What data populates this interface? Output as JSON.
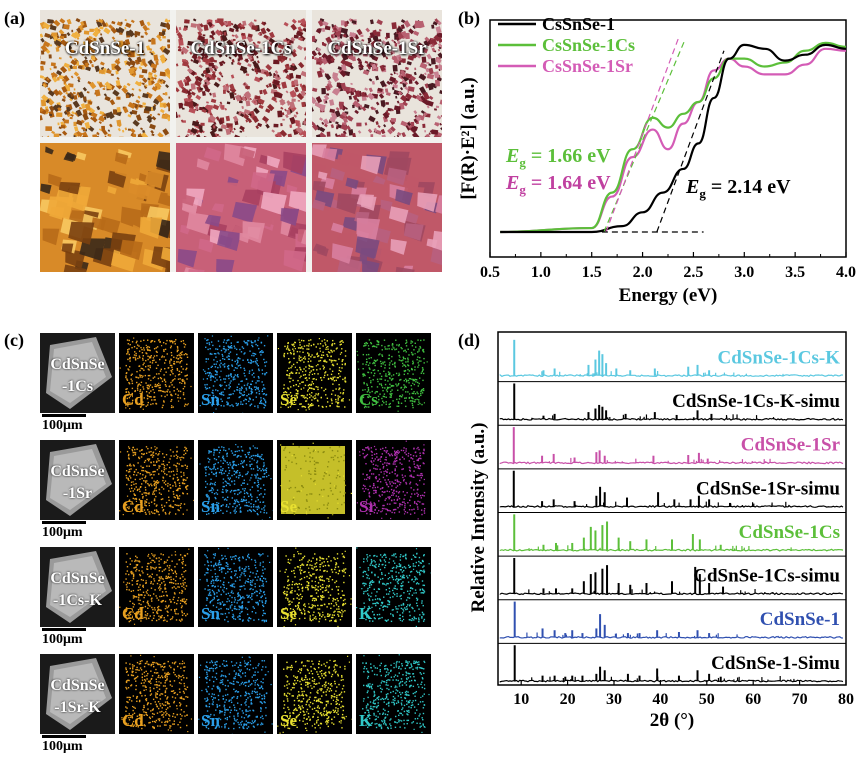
{
  "panel_a": {
    "letter": "(a)",
    "labels": [
      "CdSnSe-1",
      "CdSnSe-1Cs",
      "CdSnSe-1Sr"
    ]
  },
  "panel_b": {
    "letter": "(b)",
    "legend": [
      {
        "name": "CsSnSe-1",
        "color": "#000000"
      },
      {
        "name": "CsSnSe-1Cs",
        "color": "#5cbf3a"
      },
      {
        "name": "CsSnSe-1Sr",
        "color": "#d45cb6"
      }
    ],
    "eg_labels": [
      {
        "text_prefix": "E",
        "sub": "g",
        "value": " = 1.66 eV",
        "color": "#5cbf3a"
      },
      {
        "text_prefix": "E",
        "sub": "g",
        "value": " = 1.64 eV",
        "color": "#c040a0"
      },
      {
        "text_prefix": "E",
        "sub": "g",
        "value": " = 2.14 eV",
        "color": "#000000"
      }
    ],
    "ylabel": "[F(R)·E²] (a.u.)",
    "xlabel": "Energy (eV)",
    "xticks": [
      "0.5",
      "1.0",
      "1.5",
      "2.0",
      "2.5",
      "3.0",
      "3.5",
      "4.0"
    ]
  },
  "panel_c": {
    "letter": "(c)",
    "rows": [
      {
        "sem": [
          "CdSnSe",
          "-1Cs"
        ],
        "elements": [
          "Cd",
          "Sn",
          "Se",
          "Cs"
        ],
        "colors": [
          "#e8a020",
          "#2a9ee8",
          "#e8e030",
          "#40c040"
        ],
        "scale": "100μm"
      },
      {
        "sem": [
          "CdSnSe",
          "-1Sr"
        ],
        "elements": [
          "Cd",
          "Sn",
          "Se",
          "Sr"
        ],
        "colors": [
          "#e8a020",
          "#2a9ee8",
          "#e8e030",
          "#b030b0"
        ],
        "scale": "100μm"
      },
      {
        "sem": [
          "CdSnSe",
          "-1Cs-K"
        ],
        "elements": [
          "Cd",
          "Sn",
          "Se",
          "K"
        ],
        "colors": [
          "#e8a020",
          "#2a9ee8",
          "#e8e030",
          "#30c8c8"
        ],
        "scale": "100μm"
      },
      {
        "sem": [
          "CdSnSe",
          "-1Sr-K"
        ],
        "elements": [
          "Cd",
          "Sn",
          "Se",
          "K"
        ],
        "colors": [
          "#e8a020",
          "#2a9ee8",
          "#e8e030",
          "#30c8c8"
        ],
        "scale": "100μm"
      }
    ]
  },
  "panel_d": {
    "letter": "(d)",
    "ylabel": "Relative Intensity (a.u.)",
    "xlabel": "2θ (°)",
    "xticks": [
      "10",
      "20",
      "30",
      "40",
      "50",
      "60",
      "70",
      "80"
    ],
    "traces": [
      {
        "name": "CdSnSe-1Cs-K",
        "color": "#5bc8e0"
      },
      {
        "name": "CdSnSe-1Cs-K-simu",
        "color": "#000000"
      },
      {
        "name": "CdSnSe-1Sr",
        "color": "#c850a8"
      },
      {
        "name": "CdSnSe-1Sr-simu",
        "color": "#000000"
      },
      {
        "name": "CdSnSe-1Cs",
        "color": "#5cbf3a"
      },
      {
        "name": "CdSnSe-1Cs-simu",
        "color": "#000000"
      },
      {
        "name": "CdSnSe-1",
        "color": "#3050b0"
      },
      {
        "name": "CdSnSe-1-Simu",
        "color": "#000000"
      }
    ]
  },
  "chart_data": [
    {
      "type": "line",
      "panel": "b",
      "xlabel": "Energy (eV)",
      "ylabel": "[F(R)·E²] (a.u.)",
      "xlim": [
        0.5,
        4.0
      ],
      "series": [
        {
          "name": "CsSnSe-1",
          "x": [
            0.6,
            1.5,
            1.8,
            2.0,
            2.2,
            2.4,
            2.55,
            2.7,
            2.85,
            3.0,
            3.2,
            3.4,
            3.6,
            3.8,
            4.0
          ],
          "y": [
            0.0,
            0.0,
            0.03,
            0.1,
            0.2,
            0.32,
            0.45,
            0.68,
            0.88,
            0.95,
            0.93,
            0.87,
            0.9,
            0.95,
            0.93
          ]
        },
        {
          "name": "CsSnSe-1Cs",
          "x": [
            0.6,
            1.5,
            1.7,
            1.9,
            2.1,
            2.25,
            2.4,
            2.55,
            2.7,
            2.85,
            3.0,
            3.2,
            3.4,
            3.6,
            3.8,
            4.0
          ],
          "y": [
            0.0,
            0.02,
            0.2,
            0.42,
            0.58,
            0.53,
            0.6,
            0.66,
            0.78,
            0.88,
            0.88,
            0.84,
            0.86,
            0.92,
            0.96,
            0.94
          ]
        },
        {
          "name": "CsSnSe-1Sr",
          "x": [
            0.6,
            1.5,
            1.7,
            1.9,
            2.1,
            2.25,
            2.4,
            2.55,
            2.7,
            2.85,
            3.0,
            3.2,
            3.4,
            3.6,
            3.8,
            4.0
          ],
          "y": [
            0.0,
            0.02,
            0.18,
            0.38,
            0.52,
            0.42,
            0.55,
            0.66,
            0.82,
            0.88,
            0.84,
            0.8,
            0.8,
            0.85,
            0.93,
            0.92
          ]
        }
      ],
      "annotations": [
        "Eg = 1.66 eV",
        "Eg = 1.64 eV",
        "Eg = 2.14 eV"
      ]
    },
    {
      "type": "line",
      "panel": "d",
      "xlabel": "2θ (°)",
      "ylabel": "Relative Intensity (a.u.)",
      "xlim": [
        5,
        80
      ],
      "peaks": {
        "CdSnSe-1Cs-K": [
          [
            8.5,
            1.0
          ],
          [
            14.8,
            0.15
          ],
          [
            17.2,
            0.2
          ],
          [
            24.5,
            0.3
          ],
          [
            26.0,
            0.45
          ],
          [
            26.8,
            0.7
          ],
          [
            27.5,
            0.6
          ],
          [
            28.3,
            0.35
          ],
          [
            30.5,
            0.2
          ],
          [
            33.5,
            0.15
          ],
          [
            38.8,
            0.2
          ],
          [
            46.0,
            0.25
          ],
          [
            48.0,
            0.3
          ],
          [
            50.5,
            0.15
          ]
        ],
        "CdSnSe-1Cs-K-simu": [
          [
            8.5,
            1.0
          ],
          [
            14.8,
            0.1
          ],
          [
            17.2,
            0.15
          ],
          [
            24.5,
            0.2
          ],
          [
            26.0,
            0.3
          ],
          [
            26.8,
            0.4
          ],
          [
            27.5,
            0.35
          ],
          [
            28.3,
            0.25
          ],
          [
            32.5,
            0.15
          ],
          [
            38.8,
            0.2
          ],
          [
            43.5,
            0.12
          ],
          [
            48.0,
            0.25
          ],
          [
            51.0,
            0.15
          ]
        ],
        "CdSnSe-1Sr": [
          [
            8.4,
            1.0
          ],
          [
            14.5,
            0.2
          ],
          [
            17.0,
            0.25
          ],
          [
            21.5,
            0.15
          ],
          [
            26.2,
            0.3
          ],
          [
            26.9,
            0.35
          ],
          [
            28.0,
            0.2
          ],
          [
            38.5,
            0.2
          ],
          [
            46.0,
            0.22
          ],
          [
            48.3,
            0.28
          ],
          [
            50.2,
            0.12
          ]
        ],
        "CdSnSe-1Sr-simu": [
          [
            8.4,
            1.0
          ],
          [
            14.5,
            0.15
          ],
          [
            17.0,
            0.2
          ],
          [
            21.5,
            0.15
          ],
          [
            26.2,
            0.3
          ],
          [
            27.0,
            0.55
          ],
          [
            28.0,
            0.4
          ],
          [
            32.8,
            0.25
          ],
          [
            39.5,
            0.4
          ],
          [
            43.0,
            0.2
          ],
          [
            46.5,
            0.2
          ],
          [
            48.3,
            0.3
          ],
          [
            50.5,
            0.2
          ],
          [
            55.0,
            0.1
          ]
        ],
        "CdSnSe-1Cs": [
          [
            8.5,
            1.0
          ],
          [
            14.8,
            0.15
          ],
          [
            17.5,
            0.2
          ],
          [
            21.0,
            0.2
          ],
          [
            23.5,
            0.35
          ],
          [
            25.0,
            0.65
          ],
          [
            26.0,
            0.55
          ],
          [
            27.5,
            0.7
          ],
          [
            28.5,
            0.8
          ],
          [
            31.0,
            0.35
          ],
          [
            33.5,
            0.25
          ],
          [
            37.0,
            0.3
          ],
          [
            42.5,
            0.3
          ],
          [
            47.0,
            0.45
          ],
          [
            48.5,
            0.3
          ],
          [
            53.0,
            0.15
          ]
        ],
        "CdSnSe-1Cs-simu": [
          [
            8.5,
            1.0
          ],
          [
            14.8,
            0.15
          ],
          [
            17.5,
            0.15
          ],
          [
            21.0,
            0.15
          ],
          [
            23.5,
            0.35
          ],
          [
            25.0,
            0.55
          ],
          [
            26.0,
            0.6
          ],
          [
            27.5,
            0.7
          ],
          [
            28.5,
            0.8
          ],
          [
            31.0,
            0.3
          ],
          [
            33.5,
            0.25
          ],
          [
            37.0,
            0.3
          ],
          [
            42.5,
            0.35
          ],
          [
            47.5,
            0.75
          ],
          [
            48.5,
            0.55
          ],
          [
            50.5,
            0.3
          ],
          [
            53.5,
            0.2
          ]
        ],
        "CdSnSe-1": [
          [
            8.6,
            1.0
          ],
          [
            14.6,
            0.25
          ],
          [
            17.2,
            0.2
          ],
          [
            19.5,
            0.12
          ],
          [
            21.0,
            0.2
          ],
          [
            23.2,
            0.12
          ],
          [
            26.2,
            0.25
          ],
          [
            27.0,
            0.65
          ],
          [
            28.0,
            0.35
          ],
          [
            33.0,
            0.12
          ],
          [
            35.5,
            0.12
          ],
          [
            39.3,
            0.2
          ],
          [
            44.0,
            0.15
          ],
          [
            48.0,
            0.2
          ],
          [
            50.5,
            0.12
          ]
        ],
        "CdSnSe-1-Simu": [
          [
            8.6,
            1.0
          ],
          [
            14.6,
            0.15
          ],
          [
            17.2,
            0.15
          ],
          [
            19.5,
            0.12
          ],
          [
            21.0,
            0.15
          ],
          [
            23.2,
            0.15
          ],
          [
            26.2,
            0.2
          ],
          [
            27.0,
            0.4
          ],
          [
            28.0,
            0.3
          ],
          [
            33.0,
            0.2
          ],
          [
            35.5,
            0.15
          ],
          [
            39.3,
            0.35
          ],
          [
            44.0,
            0.15
          ],
          [
            48.0,
            0.3
          ],
          [
            50.5,
            0.2
          ],
          [
            53.0,
            0.12
          ]
        ]
      }
    }
  ]
}
